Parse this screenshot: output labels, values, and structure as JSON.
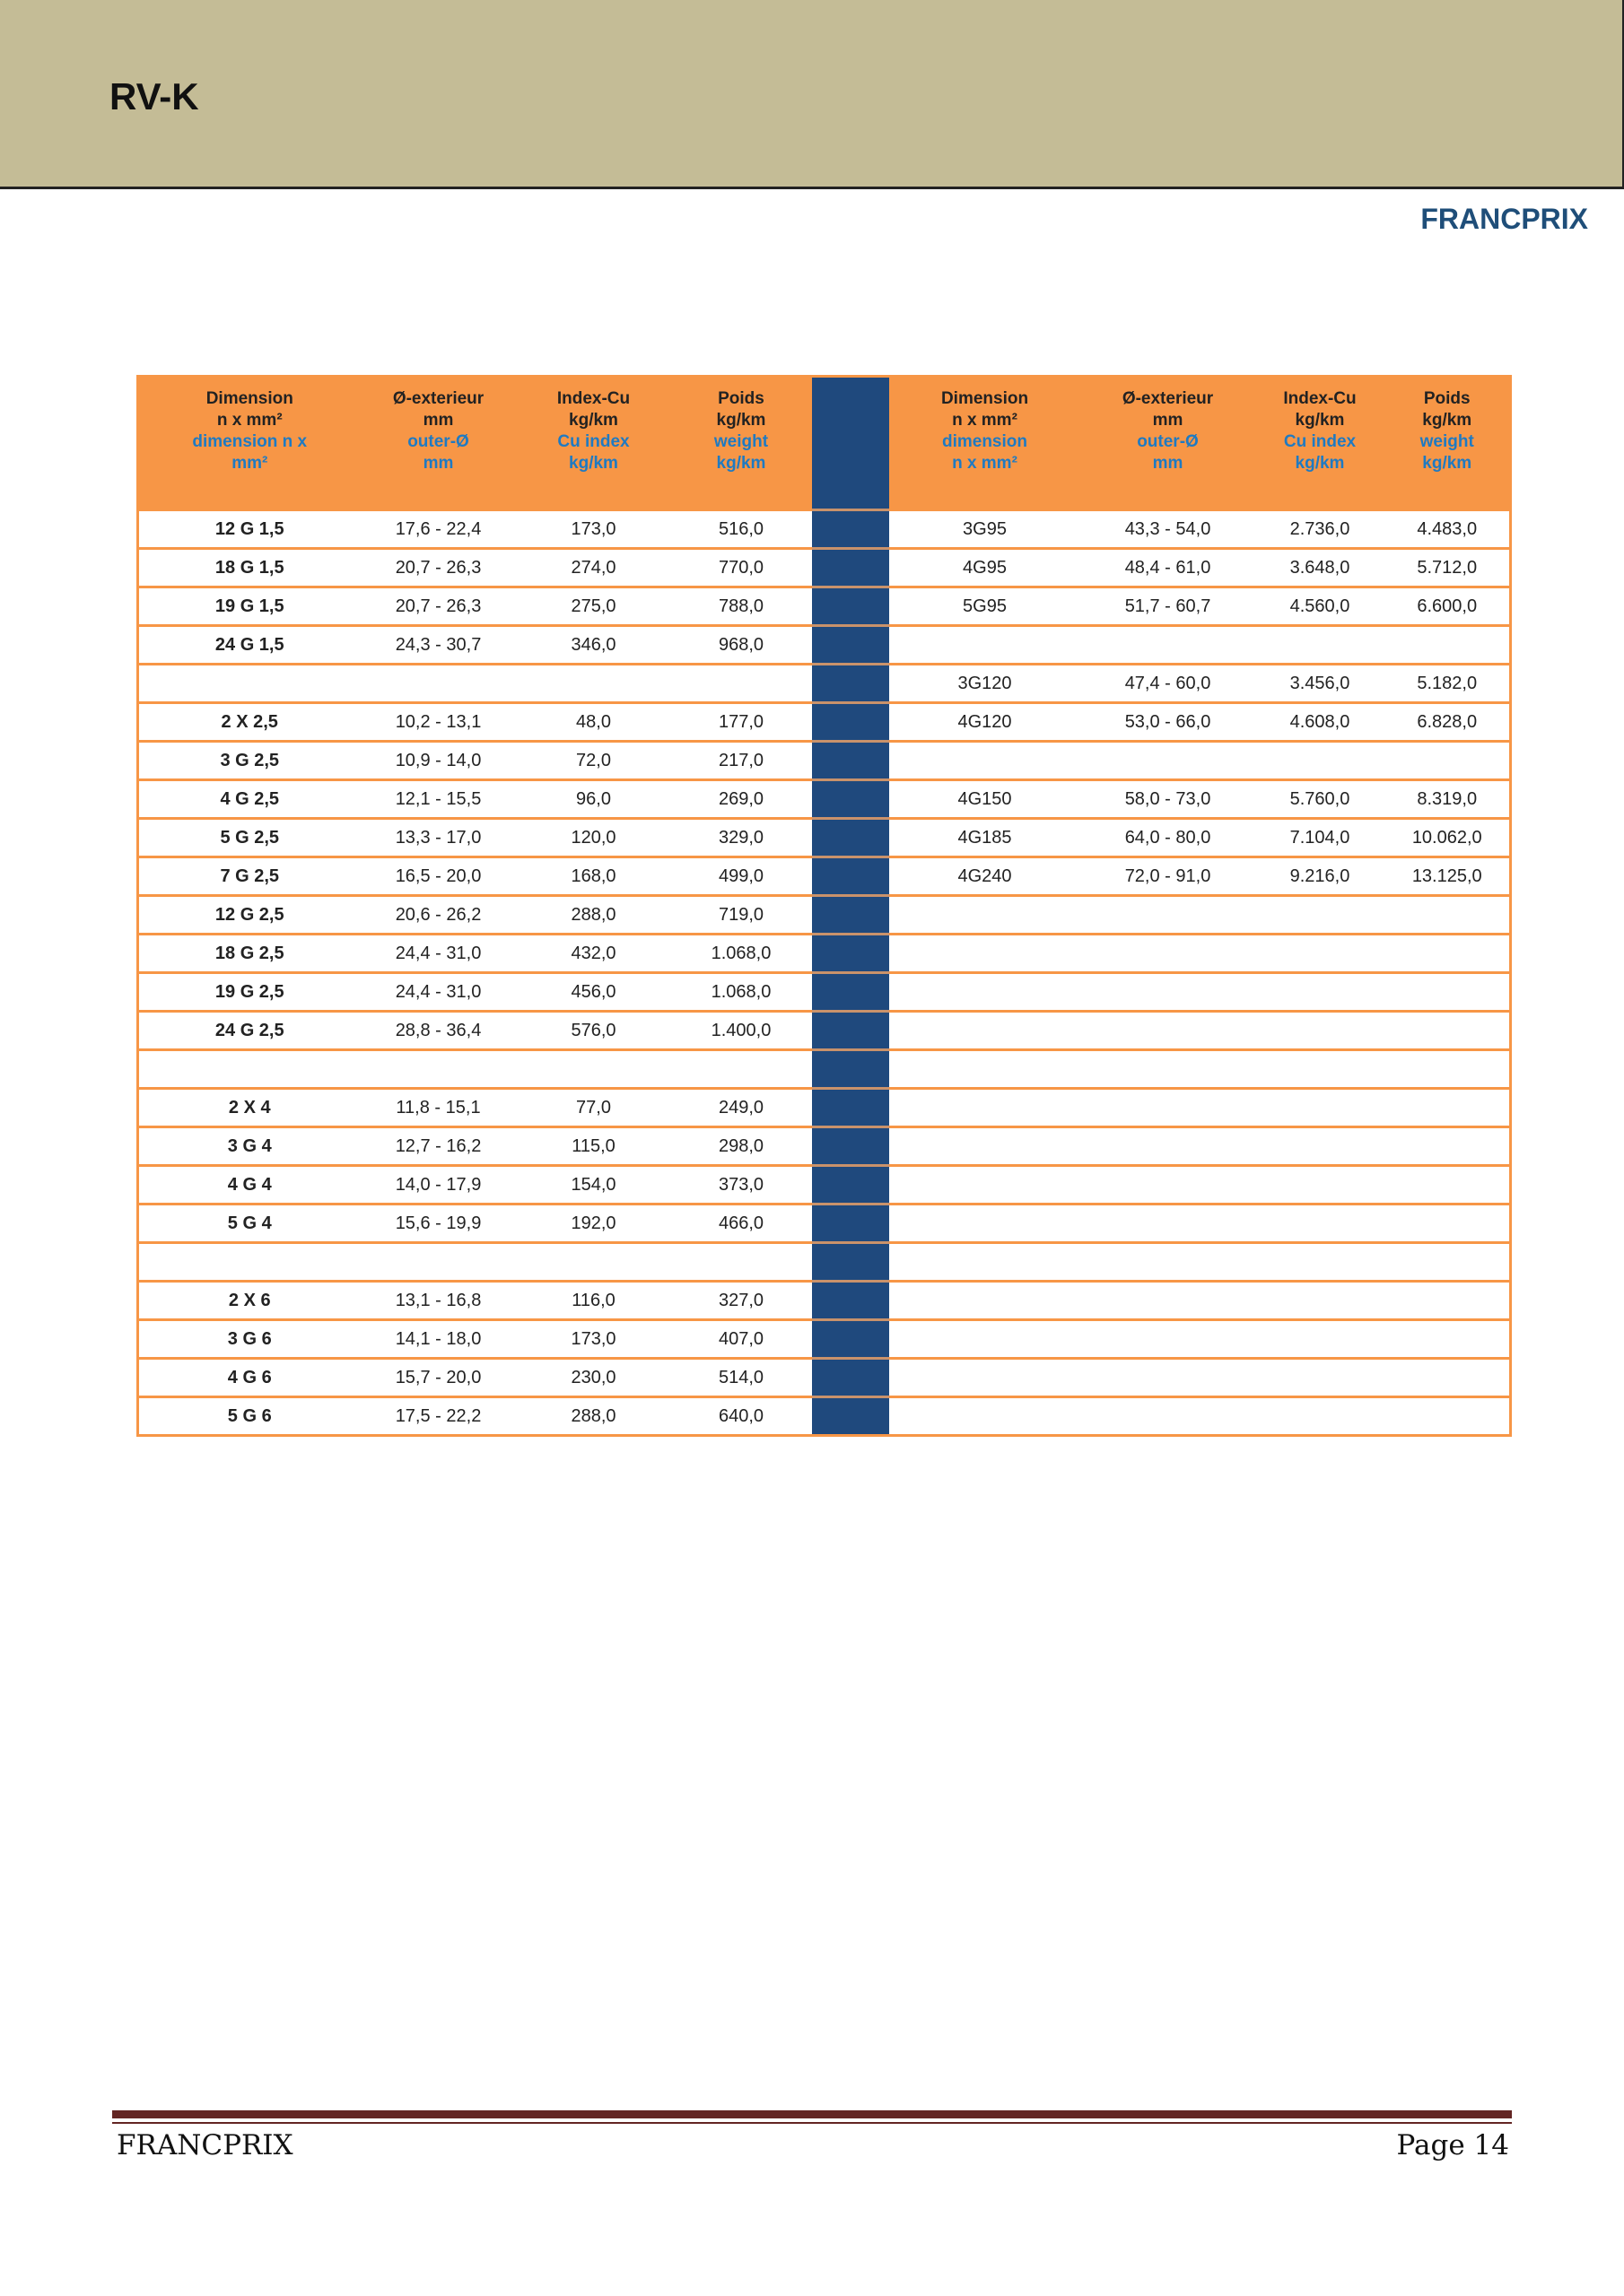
{
  "header": {
    "title": "RV-K",
    "brand": "FRANCPRIX"
  },
  "table": {
    "left_headers": [
      {
        "fr": [
          "Dimension",
          "n x mm²"
        ],
        "en": [
          "dimension n x",
          "mm²"
        ]
      },
      {
        "fr": [
          "Ø-exterieur",
          "mm"
        ],
        "en": [
          "outer-Ø",
          "mm"
        ]
      },
      {
        "fr": [
          "Index-Cu",
          "kg/km"
        ],
        "en": [
          "Cu index",
          "kg/km"
        ]
      },
      {
        "fr": [
          "Poids",
          "kg/km"
        ],
        "en": [
          "weight",
          "kg/km"
        ]
      }
    ],
    "right_headers": [
      {
        "fr": [
          "Dimension",
          "n x mm²"
        ],
        "en": [
          "dimension",
          "n x mm²"
        ]
      },
      {
        "fr": [
          "Ø-exterieur",
          "mm"
        ],
        "en": [
          "outer-Ø",
          "mm"
        ]
      },
      {
        "fr": [
          "Index-Cu",
          "kg/km"
        ],
        "en": [
          "Cu index",
          "kg/km"
        ]
      },
      {
        "fr": [
          "Poids",
          "kg/km"
        ],
        "en": [
          "weight",
          "kg/km"
        ]
      }
    ],
    "rows": [
      [
        [
          "12 G 1,5",
          "17,6 - 22,4",
          "173,0",
          "516,0"
        ],
        [
          "3G95",
          "43,3 - 54,0",
          "2.736,0",
          "4.483,0"
        ]
      ],
      [
        [
          "18 G 1,5",
          "20,7 - 26,3",
          "274,0",
          "770,0"
        ],
        [
          "4G95",
          "48,4 - 61,0",
          "3.648,0",
          "5.712,0"
        ]
      ],
      [
        [
          "19 G 1,5",
          "20,7 - 26,3",
          "275,0",
          "788,0"
        ],
        [
          "5G95",
          "51,7 - 60,7",
          "4.560,0",
          "6.600,0"
        ]
      ],
      [
        [
          "24 G 1,5",
          "24,3 - 30,7",
          "346,0",
          "968,0"
        ],
        [
          "",
          "",
          "",
          ""
        ]
      ],
      [
        [
          "",
          "",
          "",
          ""
        ],
        [
          "3G120",
          "47,4 - 60,0",
          "3.456,0",
          "5.182,0"
        ]
      ],
      [
        [
          "2 X 2,5",
          "10,2 - 13,1",
          "48,0",
          "177,0"
        ],
        [
          "4G120",
          "53,0 - 66,0",
          "4.608,0",
          "6.828,0"
        ]
      ],
      [
        [
          "3 G 2,5",
          "10,9 - 14,0",
          "72,0",
          "217,0"
        ],
        [
          "",
          "",
          "",
          ""
        ]
      ],
      [
        [
          "4 G 2,5",
          "12,1 - 15,5",
          "96,0",
          "269,0"
        ],
        [
          "4G150",
          "58,0 - 73,0",
          "5.760,0",
          "8.319,0"
        ]
      ],
      [
        [
          "5 G 2,5",
          "13,3 - 17,0",
          "120,0",
          "329,0"
        ],
        [
          "4G185",
          "64,0 - 80,0",
          "7.104,0",
          "10.062,0"
        ]
      ],
      [
        [
          "7 G 2,5",
          "16,5 - 20,0",
          "168,0",
          "499,0"
        ],
        [
          "4G240",
          "72,0 - 91,0",
          "9.216,0",
          "13.125,0"
        ]
      ],
      [
        [
          "12 G 2,5",
          "20,6 - 26,2",
          "288,0",
          "719,0"
        ],
        [
          "",
          "",
          "",
          ""
        ]
      ],
      [
        [
          "18 G 2,5",
          "24,4 - 31,0",
          "432,0",
          "1.068,0"
        ],
        [
          "",
          "",
          "",
          ""
        ]
      ],
      [
        [
          "19 G 2,5",
          "24,4 - 31,0",
          "456,0",
          "1.068,0"
        ],
        [
          "",
          "",
          "",
          ""
        ]
      ],
      [
        [
          "24 G 2,5",
          "28,8 - 36,4",
          "576,0",
          "1.400,0"
        ],
        [
          "",
          "",
          "",
          ""
        ]
      ],
      [
        [
          "",
          "",
          "",
          ""
        ],
        [
          "",
          "",
          "",
          ""
        ]
      ],
      [
        [
          "2 X 4",
          "11,8 - 15,1",
          "77,0",
          "249,0"
        ],
        [
          "",
          "",
          "",
          ""
        ]
      ],
      [
        [
          "3 G 4",
          "12,7 - 16,2",
          "115,0",
          "298,0"
        ],
        [
          "",
          "",
          "",
          ""
        ]
      ],
      [
        [
          "4 G 4",
          "14,0 - 17,9",
          "154,0",
          "373,0"
        ],
        [
          "",
          "",
          "",
          ""
        ]
      ],
      [
        [
          "5 G 4",
          "15,6 - 19,9",
          "192,0",
          "466,0"
        ],
        [
          "",
          "",
          "",
          ""
        ]
      ],
      [
        [
          "",
          "",
          "",
          ""
        ],
        [
          "",
          "",
          "",
          ""
        ]
      ],
      [
        [
          "2 X 6",
          "13,1 - 16,8",
          "116,0",
          "327,0"
        ],
        [
          "",
          "",
          "",
          ""
        ]
      ],
      [
        [
          "3 G 6",
          "14,1 - 18,0",
          "173,0",
          "407,0"
        ],
        [
          "",
          "",
          "",
          ""
        ]
      ],
      [
        [
          "4 G 6",
          "15,7 - 20,0",
          "230,0",
          "514,0"
        ],
        [
          "",
          "",
          "",
          ""
        ]
      ],
      [
        [
          "5 G 6",
          "17,5 - 22,2",
          "288,0",
          "640,0"
        ],
        [
          "",
          "",
          "",
          ""
        ]
      ]
    ]
  },
  "footer": {
    "left": "FRANCPRIX",
    "right": "Page 14"
  },
  "colors": {
    "band": "#c4bc96",
    "header_orange": "#f79646",
    "separator_blue": "#1f497d",
    "english_blue": "#1f7ac2",
    "brand_blue": "#1f4e79",
    "footer_rule": "#632523"
  }
}
